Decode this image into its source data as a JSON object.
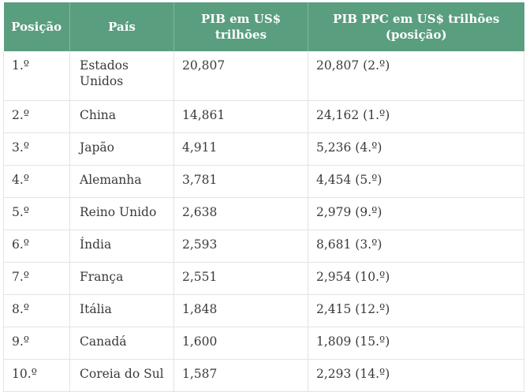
{
  "table": {
    "headers": [
      "Posição",
      "País",
      "PIB em US$ trilhões",
      "PIB PPC em US$ trilhões (posição)"
    ],
    "rows": [
      {
        "rank": "1.º",
        "country": "Estados Unidos",
        "gdp": "20,807",
        "gdp_ppp": "20,807 (2.º)"
      },
      {
        "rank": "2.º",
        "country": "China",
        "gdp": "14,861",
        "gdp_ppp": "24,162 (1.º)"
      },
      {
        "rank": "3.º",
        "country": "Japão",
        "gdp": "4,911",
        "gdp_ppp": "5,236 (4.º)"
      },
      {
        "rank": "4.º",
        "country": "Alemanha",
        "gdp": "3,781",
        "gdp_ppp": "4,454 (5.º)"
      },
      {
        "rank": "5.º",
        "country": "Reino Unido",
        "gdp": "2,638",
        "gdp_ppp": "2,979 (9.º)"
      },
      {
        "rank": "6.º",
        "country": "Índia",
        "gdp": "2,593",
        "gdp_ppp": "8,681 (3.º)"
      },
      {
        "rank": "7.º",
        "country": "França",
        "gdp": "2,551",
        "gdp_ppp": "2,954 (10.º)"
      },
      {
        "rank": "8.º",
        "country": "Itália",
        "gdp": "1,848",
        "gdp_ppp": "2,415 (12.º)"
      },
      {
        "rank": "9.º",
        "country": "Canadá",
        "gdp": "1,600",
        "gdp_ppp": "1,809 (15.º)"
      },
      {
        "rank": "10.º",
        "country": "Coreia do Sul",
        "gdp": "1,587",
        "gdp_ppp": "2,293 (14.º)"
      }
    ]
  },
  "colors": {
    "header_background": "#5a9e80",
    "header_text": "#ffffff",
    "grid_line": "#e3e3e3"
  }
}
